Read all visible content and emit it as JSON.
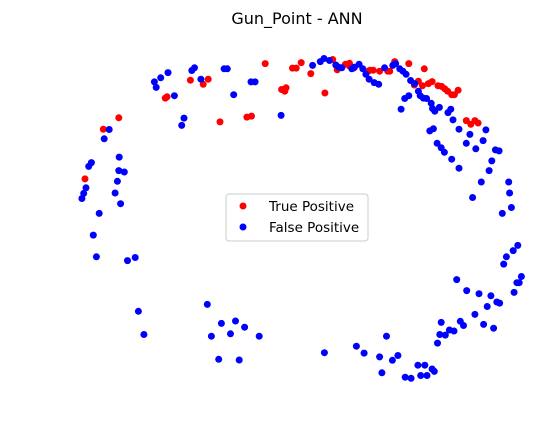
{
  "chart_data": {
    "type": "scatter",
    "title": "Gun_Point - ANN",
    "xlabel": "",
    "ylabel": "",
    "axes_visible": false,
    "grid": false,
    "legend_placement": "center",
    "xlim": [
      0,
      100
    ],
    "ylim": [
      0,
      100
    ],
    "series": [
      {
        "name": "True Positive",
        "color": "#ff0000",
        "marker": "circle",
        "points": [
          [
            3.3,
            61.2
          ],
          [
            7.3,
            75.6
          ],
          [
            10.7,
            78.9
          ],
          [
            20.9,
            84.6
          ],
          [
            21.3,
            85.0
          ],
          [
            26.4,
            89.8
          ],
          [
            29.2,
            88.6
          ],
          [
            30.3,
            90.1
          ],
          [
            32.9,
            77.7
          ],
          [
            38.8,
            79.1
          ],
          [
            39.8,
            79.4
          ],
          [
            42.8,
            94.6
          ],
          [
            46.4,
            87.1
          ],
          [
            47.1,
            86.6
          ],
          [
            47.4,
            87.6
          ],
          [
            48.8,
            93.3
          ],
          [
            49.6,
            93.3
          ],
          [
            50.7,
            94.9
          ],
          [
            52.8,
            91.7
          ],
          [
            55.9,
            86.1
          ],
          [
            57.6,
            95.8
          ],
          [
            58.6,
            92.8
          ],
          [
            60.4,
            94.4
          ],
          [
            61.3,
            93.9
          ],
          [
            61.3,
            94.7
          ],
          [
            62.2,
            93.3
          ],
          [
            65.4,
            92.4
          ],
          [
            65.8,
            92.7
          ],
          [
            66.5,
            92.7
          ],
          [
            67.9,
            92.4
          ],
          [
            69.7,
            92.4
          ],
          [
            70.1,
            92.4
          ],
          [
            71.2,
            95.2
          ],
          [
            74.3,
            94.6
          ],
          [
            75.5,
            88.4
          ],
          [
            76.4,
            89.5
          ],
          [
            77.3,
            88.2
          ],
          [
            77.7,
            93.1
          ],
          [
            78.6,
            88.8
          ],
          [
            79.4,
            89.4
          ],
          [
            80.7,
            88.2
          ],
          [
            81.5,
            88.0
          ],
          [
            82.2,
            87.3
          ],
          [
            82.8,
            86.6
          ],
          [
            83.7,
            85.6
          ],
          [
            84.3,
            85.6
          ],
          [
            85.1,
            86.9
          ],
          [
            86.9,
            78.1
          ],
          [
            87.9,
            77.0
          ],
          [
            88.8,
            78.1
          ],
          [
            89.5,
            77.4
          ]
        ]
      },
      {
        "name": "False Positive",
        "color": "#0000ff",
        "marker": "circle",
        "points": [
          [
            2.6,
            55.5
          ],
          [
            3.0,
            57.0
          ],
          [
            3.5,
            58.6
          ],
          [
            4.1,
            64.8
          ],
          [
            4.7,
            65.9
          ],
          [
            5.1,
            44.9
          ],
          [
            5.8,
            38.6
          ],
          [
            6.4,
            51.2
          ],
          [
            7.5,
            72.8
          ],
          [
            8.6,
            75.5
          ],
          [
            9.9,
            57.1
          ],
          [
            10.4,
            60.5
          ],
          [
            10.7,
            63.6
          ],
          [
            10.8,
            67.5
          ],
          [
            11.1,
            54.0
          ],
          [
            11.9,
            63.2
          ],
          [
            12.6,
            37.5
          ],
          [
            14.3,
            38.4
          ],
          [
            15.0,
            22.8
          ],
          [
            16.2,
            16.1
          ],
          [
            18.5,
            89.3
          ],
          [
            18.9,
            87.7
          ],
          [
            19.9,
            90.5
          ],
          [
            21.5,
            92.0
          ],
          [
            22.9,
            85.3
          ],
          [
            24.5,
            76.7
          ],
          [
            25.0,
            78.8
          ],
          [
            26.7,
            92.6
          ],
          [
            27.3,
            93.4
          ],
          [
            28.7,
            90.1
          ],
          [
            30.1,
            24.8
          ],
          [
            31.0,
            15.6
          ],
          [
            32.6,
            8.9
          ],
          [
            33.2,
            19.3
          ],
          [
            33.8,
            93.1
          ],
          [
            34.5,
            93.1
          ],
          [
            35.2,
            16.3
          ],
          [
            35.9,
            85.6
          ],
          [
            36.3,
            20.0
          ],
          [
            37.1,
            8.7
          ],
          [
            38.3,
            18.2
          ],
          [
            39.7,
            89.3
          ],
          [
            40.6,
            89.3
          ],
          [
            41.5,
            15.6
          ],
          [
            46.3,
            79.6
          ],
          [
            55.8,
            10.8
          ],
          [
            62.8,
            12.7
          ],
          [
            64.5,
            10.7
          ],
          [
            67.9,
            9.6
          ],
          [
            68.4,
            5.0
          ],
          [
            69.4,
            15.6
          ],
          [
            70.7,
            8.6
          ],
          [
            71.9,
            10.0
          ],
          [
            73.5,
            3.7
          ],
          [
            74.8,
            3.4
          ],
          [
            76.3,
            7.2
          ],
          [
            76.9,
            4.2
          ],
          [
            77.8,
            7.2
          ],
          [
            78.3,
            4.2
          ],
          [
            79.4,
            6.1
          ],
          [
            79.9,
            5.4
          ],
          [
            80.6,
            13.6
          ],
          [
            81.1,
            16.1
          ],
          [
            81.4,
            19.6
          ],
          [
            82.3,
            15.9
          ],
          [
            83.2,
            17.4
          ],
          [
            84.2,
            17.1
          ],
          [
            84.8,
            32.0
          ],
          [
            85.6,
            19.9
          ],
          [
            86.3,
            18.7
          ],
          [
            87.0,
            28.8
          ],
          [
            88.8,
            21.9
          ],
          [
            89.7,
            27.9
          ],
          [
            90.7,
            19.0
          ],
          [
            91.5,
            24.2
          ],
          [
            92.3,
            27.3
          ],
          [
            92.9,
            17.9
          ],
          [
            93.6,
            25.5
          ],
          [
            94.2,
            25.2
          ],
          [
            95.1,
            36.5
          ],
          [
            95.7,
            38.6
          ],
          [
            96.2,
            60.3
          ],
          [
            97.4,
            28.3
          ],
          [
            98.0,
            31.1
          ],
          [
            98.5,
            31.1
          ],
          [
            99.0,
            32.9
          ],
          [
            97.2,
            40.4
          ],
          [
            98.2,
            41.9
          ],
          [
            94.8,
            51.2
          ],
          [
            96.8,
            52.9
          ],
          [
            96.4,
            57.1
          ],
          [
            88.3,
            55.8
          ],
          [
            90.2,
            60.3
          ],
          [
            91.9,
            63.6
          ],
          [
            92.5,
            66.4
          ],
          [
            93.3,
            69.6
          ],
          [
            94.1,
            69.3
          ],
          [
            89.0,
            69.9
          ],
          [
            90.6,
            72.3
          ],
          [
            91.2,
            75.4
          ],
          [
            86.9,
            71.5
          ],
          [
            87.7,
            74.1
          ],
          [
            85.3,
            75.6
          ],
          [
            84.0,
            78.3
          ],
          [
            82.9,
            80.4
          ],
          [
            83.5,
            81.4
          ],
          [
            81.0,
            81.9
          ],
          [
            80.0,
            80.8
          ],
          [
            79.5,
            81.6
          ],
          [
            79.2,
            83.1
          ],
          [
            78.2,
            84.5
          ],
          [
            77.5,
            84.6
          ],
          [
            76.8,
            85.3
          ],
          [
            76.4,
            86.6
          ],
          [
            75.6,
            88.8
          ],
          [
            74.7,
            89.7
          ],
          [
            73.7,
            91.5
          ],
          [
            73.0,
            92.4
          ],
          [
            72.3,
            93.1
          ],
          [
            71.4,
            94.6
          ],
          [
            70.8,
            94.1
          ],
          [
            69.0,
            93.4
          ],
          [
            67.7,
            88.6
          ],
          [
            66.7,
            89.1
          ],
          [
            65.6,
            90.1
          ],
          [
            64.9,
            91.5
          ],
          [
            64.2,
            93.1
          ],
          [
            63.4,
            94.4
          ],
          [
            62.4,
            93.6
          ],
          [
            61.8,
            93.1
          ],
          [
            59.6,
            93.4
          ],
          [
            58.9,
            93.6
          ],
          [
            58.3,
            94.2
          ],
          [
            56.9,
            95.5
          ],
          [
            55.7,
            96.1
          ],
          [
            54.9,
            95.2
          ],
          [
            53.2,
            94.1
          ],
          [
            72.6,
            81.4
          ],
          [
            73.4,
            84.5
          ],
          [
            74.3,
            85.3
          ],
          [
            78.9,
            75.1
          ],
          [
            79.7,
            75.7
          ],
          [
            80.5,
            71.5
          ],
          [
            81.4,
            70.2
          ],
          [
            82.1,
            68.9
          ],
          [
            83.7,
            66.9
          ],
          [
            85.3,
            64.3
          ]
        ]
      }
    ]
  }
}
